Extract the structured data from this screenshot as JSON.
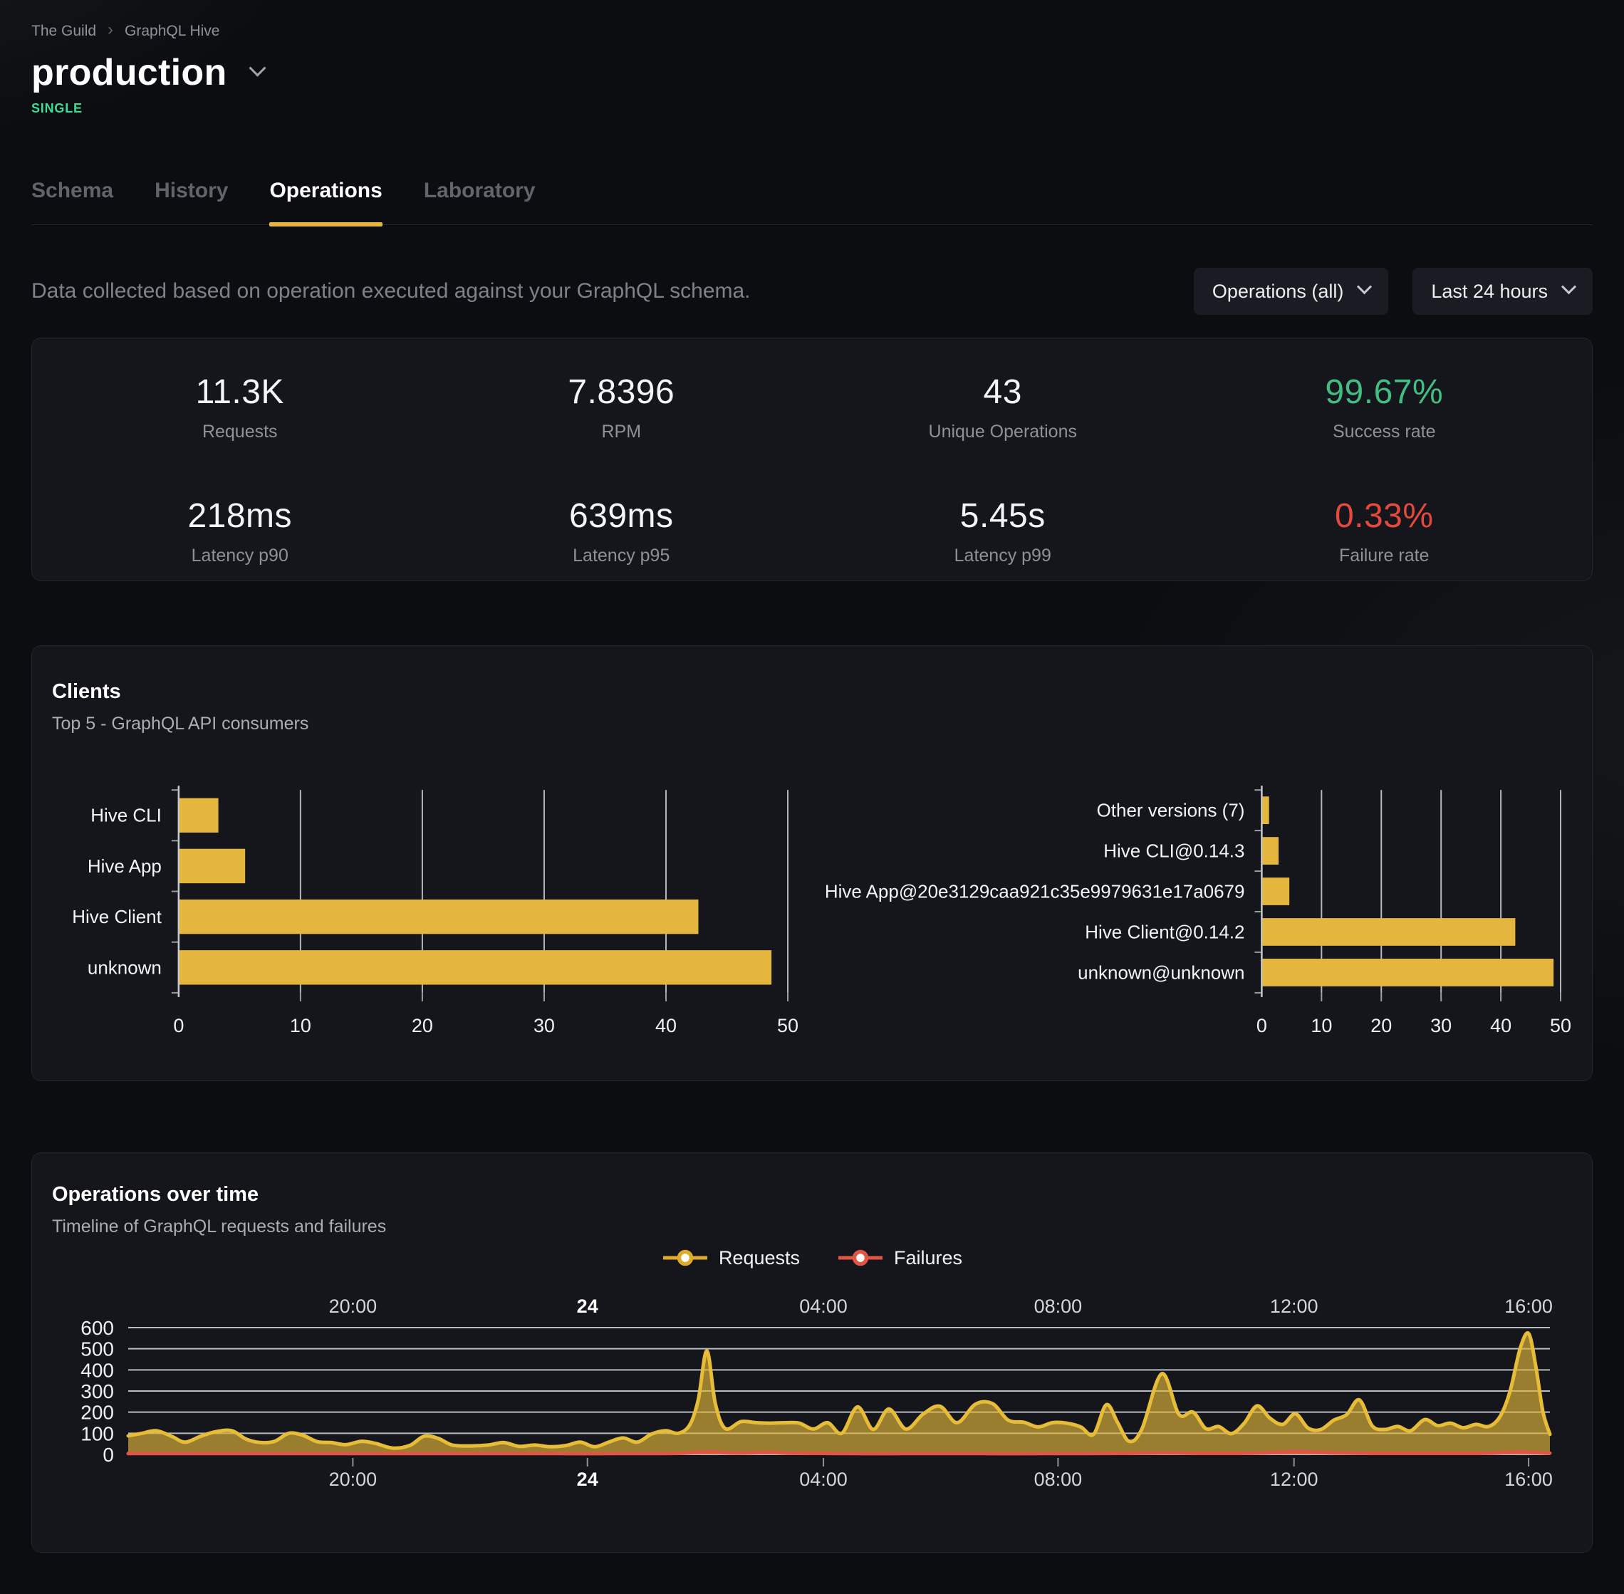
{
  "header": {
    "breadcrumb": {
      "items": [
        "The Guild",
        "GraphQL Hive"
      ],
      "separator": "›"
    },
    "title": "production",
    "badge": "SINGLE"
  },
  "tabs": {
    "items": [
      {
        "label": "Schema",
        "active": false
      },
      {
        "label": "History",
        "active": false
      },
      {
        "label": "Operations",
        "active": true
      },
      {
        "label": "Laboratory",
        "active": false
      }
    ]
  },
  "controls": {
    "description": "Data collected based on operation executed against your GraphQL schema.",
    "filters": [
      {
        "label": "Operations (all)",
        "icon": "chevron-down"
      },
      {
        "label": "Last 24 hours",
        "icon": "chevron-down"
      }
    ]
  },
  "stats": {
    "items": [
      {
        "value": "11.3K",
        "label": "Requests",
        "color": "default"
      },
      {
        "value": "7.8396",
        "label": "RPM",
        "color": "default"
      },
      {
        "value": "43",
        "label": "Unique Operations",
        "color": "default"
      },
      {
        "value": "99.67%",
        "label": "Success rate",
        "color": "green"
      },
      {
        "value": "218ms",
        "label": "Latency p90",
        "color": "default"
      },
      {
        "value": "639ms",
        "label": "Latency p95",
        "color": "default"
      },
      {
        "value": "5.45s",
        "label": "Latency p99",
        "color": "default"
      },
      {
        "value": "0.33%",
        "label": "Failure rate",
        "color": "red"
      }
    ]
  },
  "clients_card": {
    "title": "Clients",
    "subtitle": "Top 5 - GraphQL API consumers"
  },
  "operations_card": {
    "title": "Operations over time",
    "subtitle": "Timeline of GraphQL requests and failures",
    "legend": [
      {
        "label": "Requests",
        "color": "#dfab2e"
      },
      {
        "label": "Failures",
        "color": "#e15546"
      }
    ]
  },
  "colors": {
    "page_background": "#0b0d10",
    "card_background": "#14161b",
    "accent_yellow": "#e9b63d",
    "bar_yellow": "#e4b63e",
    "success_green": "#42bd83",
    "failure_red": "#e5483d",
    "badge_teal": "#3ddc97"
  },
  "chart_data": [
    {
      "type": "bar",
      "orientation": "horizontal",
      "title": "Clients by name",
      "categories": [
        "Hive CLI",
        "Hive App",
        "Hive Client",
        "unknown"
      ],
      "values": [
        3.2,
        5.4,
        42.6,
        48.6
      ],
      "xlim": [
        0,
        50
      ],
      "xticks": [
        0,
        10,
        20,
        30,
        40,
        50
      ],
      "grid": true,
      "bar_color": "#e4b63e"
    },
    {
      "type": "bar",
      "orientation": "horizontal",
      "title": "Clients by version",
      "categories": [
        "Other versions (7)",
        "Hive CLI@0.14.3",
        "Hive App@20e3129caa921c35e9979631e17a0679",
        "Hive Client@0.14.2",
        "unknown@unknown"
      ],
      "values": [
        1.1,
        2.7,
        4.5,
        42.3,
        48.7
      ],
      "xlim": [
        0,
        50
      ],
      "xticks": [
        0,
        10,
        20,
        30,
        40,
        50
      ],
      "grid": true,
      "bar_color": "#e4b63e"
    },
    {
      "type": "area",
      "title": "Operations over time",
      "ylim": [
        0,
        600
      ],
      "yticks": [
        0,
        100,
        200,
        300,
        400,
        500,
        600
      ],
      "grid": true,
      "legend_position": "top-center",
      "xticks": [
        {
          "label": "20:00",
          "pos": 0.158,
          "bold": false
        },
        {
          "label": "24",
          "pos": 0.323,
          "bold": true
        },
        {
          "label": "04:00",
          "pos": 0.489,
          "bold": false
        },
        {
          "label": "08:00",
          "pos": 0.654,
          "bold": false
        },
        {
          "label": "12:00",
          "pos": 0.82,
          "bold": false
        },
        {
          "label": "16:00",
          "pos": 0.985,
          "bold": false
        }
      ],
      "series": [
        {
          "name": "Requests",
          "color": "#e7bc37",
          "fill": "rgba(225,180,58,0.66)",
          "points": [
            [
              0,
              88
            ],
            [
              0.01,
              100
            ],
            [
              0.02,
              112
            ],
            [
              0.031,
              84
            ],
            [
              0.04,
              58
            ],
            [
              0.051,
              86
            ],
            [
              0.062,
              108
            ],
            [
              0.073,
              112
            ],
            [
              0.083,
              72
            ],
            [
              0.093,
              56
            ],
            [
              0.103,
              62
            ],
            [
              0.113,
              100
            ],
            [
              0.123,
              90
            ],
            [
              0.133,
              60
            ],
            [
              0.143,
              56
            ],
            [
              0.153,
              46
            ],
            [
              0.164,
              62
            ],
            [
              0.174,
              52
            ],
            [
              0.186,
              30
            ],
            [
              0.198,
              42
            ],
            [
              0.208,
              86
            ],
            [
              0.218,
              76
            ],
            [
              0.228,
              44
            ],
            [
              0.241,
              40
            ],
            [
              0.253,
              44
            ],
            [
              0.264,
              56
            ],
            [
              0.275,
              38
            ],
            [
              0.286,
              44
            ],
            [
              0.297,
              36
            ],
            [
              0.308,
              42
            ],
            [
              0.318,
              58
            ],
            [
              0.328,
              36
            ],
            [
              0.338,
              58
            ],
            [
              0.348,
              78
            ],
            [
              0.358,
              58
            ],
            [
              0.368,
              96
            ],
            [
              0.378,
              112
            ],
            [
              0.387,
              100
            ],
            [
              0.395,
              140
            ],
            [
              0.401,
              260
            ],
            [
              0.407,
              490
            ],
            [
              0.413,
              240
            ],
            [
              0.42,
              122
            ],
            [
              0.431,
              155
            ],
            [
              0.442,
              150
            ],
            [
              0.452,
              148
            ],
            [
              0.462,
              150
            ],
            [
              0.472,
              148
            ],
            [
              0.482,
              120
            ],
            [
              0.492,
              150
            ],
            [
              0.502,
              100
            ],
            [
              0.513,
              225
            ],
            [
              0.524,
              118
            ],
            [
              0.535,
              215
            ],
            [
              0.547,
              120
            ],
            [
              0.559,
              190
            ],
            [
              0.571,
              228
            ],
            [
              0.583,
              150
            ],
            [
              0.596,
              238
            ],
            [
              0.608,
              240
            ],
            [
              0.619,
              162
            ],
            [
              0.63,
              152
            ],
            [
              0.64,
              130
            ],
            [
              0.65,
              150
            ],
            [
              0.66,
              148
            ],
            [
              0.67,
              130
            ],
            [
              0.679,
              95
            ],
            [
              0.688,
              235
            ],
            [
              0.696,
              150
            ],
            [
              0.704,
              62
            ],
            [
              0.713,
              120
            ],
            [
              0.727,
              382
            ],
            [
              0.739,
              190
            ],
            [
              0.749,
              200
            ],
            [
              0.758,
              122
            ],
            [
              0.767,
              132
            ],
            [
              0.776,
              98
            ],
            [
              0.785,
              148
            ],
            [
              0.794,
              230
            ],
            [
              0.803,
              172
            ],
            [
              0.812,
              142
            ],
            [
              0.821,
              192
            ],
            [
              0.83,
              124
            ],
            [
              0.839,
              118
            ],
            [
              0.848,
              162
            ],
            [
              0.857,
              188
            ],
            [
              0.866,
              258
            ],
            [
              0.875,
              135
            ],
            [
              0.884,
              118
            ],
            [
              0.893,
              132
            ],
            [
              0.902,
              112
            ],
            [
              0.912,
              165
            ],
            [
              0.921,
              136
            ],
            [
              0.93,
              148
            ],
            [
              0.939,
              126
            ],
            [
              0.948,
              142
            ],
            [
              0.957,
              132
            ],
            [
              0.965,
              180
            ],
            [
              0.972,
              300
            ],
            [
              0.979,
              500
            ],
            [
              0.985,
              572
            ],
            [
              0.99,
              420
            ],
            [
              0.995,
              205
            ],
            [
              1,
              95
            ]
          ]
        },
        {
          "name": "Failures",
          "color": "#e15546",
          "fill": "rgba(224,82,66,0.55)",
          "points": [
            [
              0,
              4
            ],
            [
              0.05,
              4
            ],
            [
              0.1,
              4
            ],
            [
              0.15,
              4
            ],
            [
              0.2,
              4
            ],
            [
              0.25,
              4
            ],
            [
              0.3,
              4
            ],
            [
              0.35,
              4
            ],
            [
              0.385,
              5
            ],
            [
              0.4,
              10
            ],
            [
              0.41,
              13
            ],
            [
              0.42,
              8
            ],
            [
              0.435,
              7
            ],
            [
              0.45,
              10
            ],
            [
              0.465,
              6
            ],
            [
              0.5,
              4
            ],
            [
              0.55,
              4
            ],
            [
              0.6,
              4
            ],
            [
              0.65,
              4
            ],
            [
              0.7,
              5
            ],
            [
              0.73,
              7
            ],
            [
              0.76,
              5
            ],
            [
              0.79,
              6
            ],
            [
              0.81,
              10
            ],
            [
              0.822,
              15
            ],
            [
              0.835,
              10
            ],
            [
              0.85,
              7
            ],
            [
              0.88,
              5
            ],
            [
              0.91,
              5
            ],
            [
              0.94,
              5
            ],
            [
              0.957,
              6
            ],
            [
              0.97,
              9
            ],
            [
              0.98,
              12
            ],
            [
              0.988,
              9
            ],
            [
              1,
              6
            ]
          ]
        }
      ]
    }
  ]
}
